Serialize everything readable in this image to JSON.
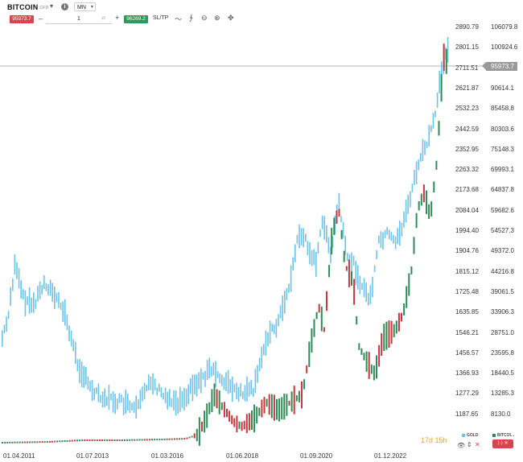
{
  "header": {
    "symbol": "BITCOIN",
    "symbol_type": "CFD",
    "info_icon": "info-icon",
    "timeframe": "MN"
  },
  "trade_bar": {
    "sell_price": "95973.7",
    "quantity": "1",
    "buy_price": "96269.2",
    "sltp_label": "SL/TP",
    "tools": [
      "line-chart-icon",
      "indicators-icon",
      "zoom-out-icon",
      "zoom-in-icon",
      "crosshair-icon"
    ]
  },
  "axis_left": [
    "2890.79",
    "2801.15",
    "2711.51",
    "2621.87",
    "2532.23",
    "2442.59",
    "2352.95",
    "2263.32",
    "2173.68",
    "2084.04",
    "1994.40",
    "1904.76",
    "1815.12",
    "1725.48",
    "1635.85",
    "1546.21",
    "1456.57",
    "1366.93",
    "1277.29",
    "1187.65"
  ],
  "axis_right": [
    "106079.8",
    "100924.6",
    "95973.7",
    "90614.1",
    "85458.8",
    "80303.6",
    "75148.3",
    "69993.1",
    "64837.8",
    "59682.6",
    "54527.3",
    "49372.0",
    "44216.8",
    "39061.5",
    "33906.3",
    "28751.0",
    "23595.8",
    "18440.5",
    "13285.3",
    "8130.0"
  ],
  "current_price": "95973.7",
  "dates": [
    "01.04.2011",
    "01.07.2013",
    "01.03.2016",
    "01.06.2018",
    "01.09.2020",
    "01.12.2022"
  ],
  "countdown": "17d 15h",
  "legend": {
    "gold": "GOLD",
    "bitcoin": "BITCOI...",
    "gold_color": "#6ec3ea",
    "bitcoin_color": "#2e8b57"
  },
  "colors": {
    "up_bitcoin": "#2e8b57",
    "down": "#c8373d",
    "gold": "#6ec3ea",
    "price_line": "#999999"
  }
}
